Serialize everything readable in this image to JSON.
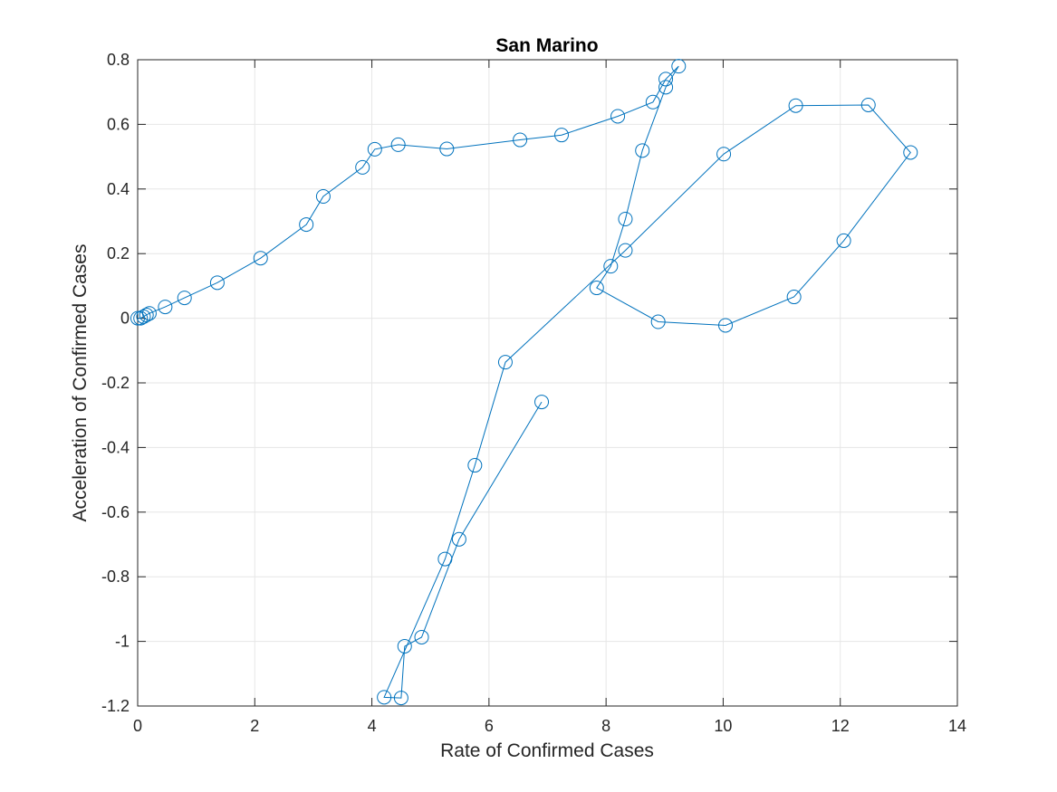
{
  "chart_data": {
    "type": "line",
    "title": "San Marino",
    "xlabel": "Rate of Confirmed Cases",
    "ylabel": "Acceleration of Confirmed Cases",
    "xlim": [
      0,
      14
    ],
    "ylim": [
      -1.2,
      0.8
    ],
    "xticks": [
      "0",
      "2",
      "4",
      "6",
      "8",
      "10",
      "12",
      "14"
    ],
    "yticks": [
      "-1.2",
      "-1",
      "-0.8",
      "-0.6",
      "-0.4",
      "-0.2",
      "0",
      "0.2",
      "0.4",
      "0.6",
      "0.8"
    ],
    "grid": true,
    "marker": "circle",
    "line_color": "#0072bd",
    "series": [
      {
        "x": [
          0,
          0.05,
          0.1,
          0.15,
          0.2,
          0.47,
          0.8,
          1.36,
          2.1,
          2.88,
          3.17,
          3.84,
          4.05,
          4.45,
          5.28,
          6.53,
          7.24,
          8.2,
          8.8,
          9.02,
          9.24,
          9.02,
          8.62,
          8.33,
          8.08,
          7.84,
          8.89,
          10.04,
          11.21,
          12.06,
          13.2,
          12.48,
          11.24,
          10.01,
          8.33,
          6.28,
          5.76,
          5.25,
          4.21,
          4.5,
          4.56,
          4.85,
          5.49,
          6.9
        ],
        "y": [
          0,
          0,
          0.005,
          0.01,
          0.015,
          0.035,
          0.063,
          0.11,
          0.186,
          0.29,
          0.377,
          0.467,
          0.523,
          0.537,
          0.524,
          0.552,
          0.567,
          0.625,
          0.669,
          0.74,
          0.78,
          0.715,
          0.519,
          0.307,
          0.161,
          0.094,
          -0.011,
          -0.022,
          0.066,
          0.24,
          0.513,
          0.66,
          0.658,
          0.508,
          0.21,
          -0.136,
          -0.455,
          -0.745,
          -1.173,
          -1.175,
          -1.015,
          -0.987,
          -0.684,
          -0.259
        ]
      }
    ]
  }
}
